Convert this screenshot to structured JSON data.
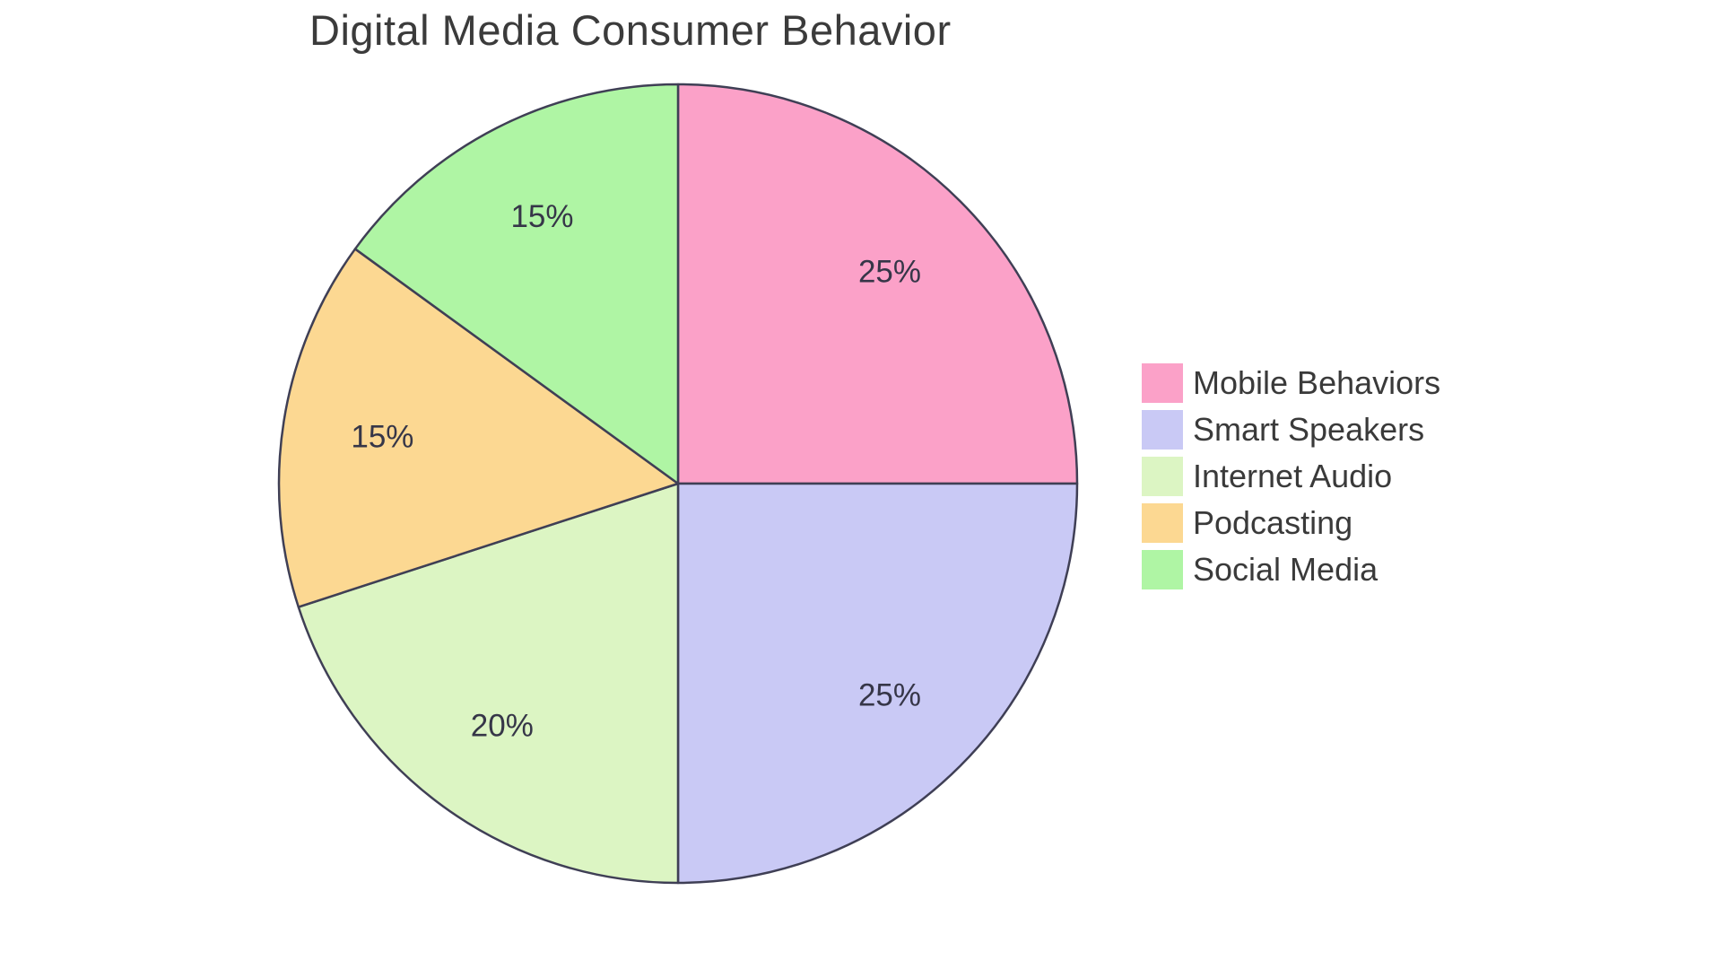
{
  "page": {
    "background": "#FFFFFF"
  },
  "chart_data": {
    "type": "pie",
    "title": "Digital Media Consumer Behavior",
    "labels": [
      "Mobile Behaviors",
      "Smart Speakers",
      "Internet Audio",
      "Podcasting",
      "Social Media"
    ],
    "values": [
      25,
      25,
      20,
      15,
      15
    ],
    "percent_labels": [
      "25%",
      "25%",
      "20%",
      "15%",
      "15%"
    ],
    "colors": [
      "#FBA1C8",
      "#C9C9F5",
      "#DCF5C3",
      "#FCD892",
      "#AFF5A4"
    ],
    "start_angle": "top",
    "direction": "clockwise",
    "legend_position": "right",
    "grid": false,
    "slice_border_color": "#3F3F55",
    "slice_border_width": 2.5,
    "percent_label_color": "#363648",
    "title_color": "#3B3B3B",
    "legend_text_color": "#3A3A3A"
  }
}
